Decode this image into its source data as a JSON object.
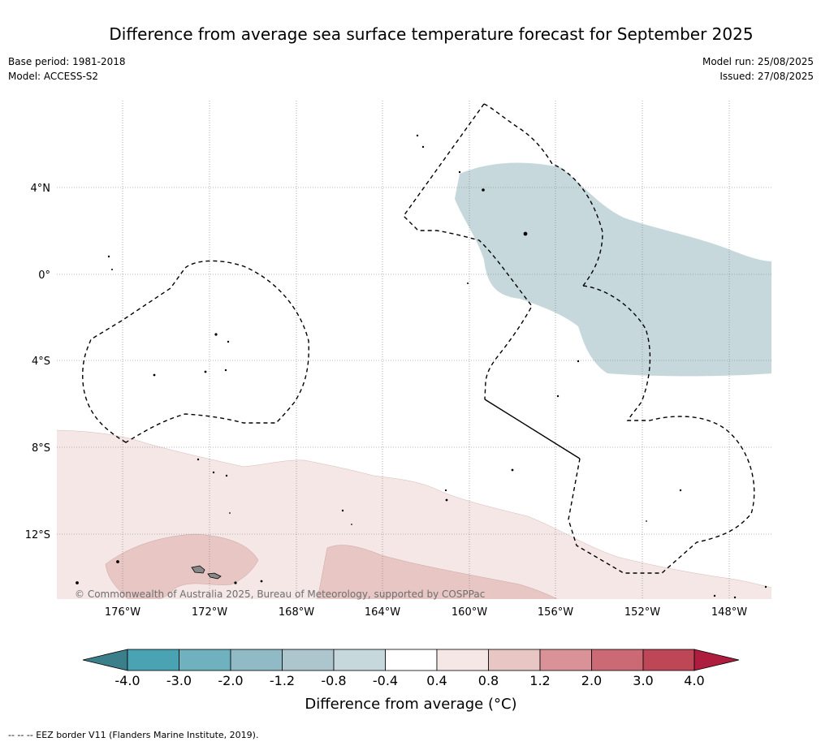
{
  "title": "Difference from average sea surface temperature forecast for September 2025",
  "base_period": "Base period: 1981-2018",
  "model": "Model: ACCESS-S2",
  "model_run": "Model run: 25/08/2025",
  "issued": "Issued: 27/08/2025",
  "copyright": "© Commonwealth of Australia 2025, Bureau of Meteorology, supported by COSPPac",
  "footer_legend": "-- -- -- EEZ border V11 (Flanders Marine Institute, 2019).",
  "map": {
    "lon_labels": [
      "176°W",
      "172°W",
      "168°W",
      "164°W",
      "160°W",
      "156°W",
      "152°W",
      "148°W"
    ],
    "lat_labels": [
      "4°N",
      "0°",
      "4°S",
      "8°S",
      "12°S"
    ]
  },
  "colorbar": {
    "label": "Difference from average (°C)",
    "tick_labels": [
      "-4.0",
      "-3.0",
      "-2.0",
      "-1.2",
      "-0.8",
      "-0.4",
      "0.4",
      "0.8",
      "1.2",
      "2.0",
      "3.0",
      "4.0"
    ],
    "colors": {
      "below_-4": "#3a7f8a",
      "-4_-3": "#4aa3b2",
      "-3_-2": "#6fb1bf",
      "-2_-1.2": "#8fbac6",
      "-1.2_-0.8": "#adc6cd",
      "-0.8_-0.4": "#c6d8dc",
      "-0.4_0.4": "#ffffff",
      "0.4_0.8": "#f5e7e6",
      "0.8_1.2": "#e7c6c3",
      "1.2_2.0": "#d99297",
      "2.0_3.0": "#cb6a75",
      "3.0_4.0": "#be4757",
      "above_4": "#ae1d3e"
    }
  }
}
